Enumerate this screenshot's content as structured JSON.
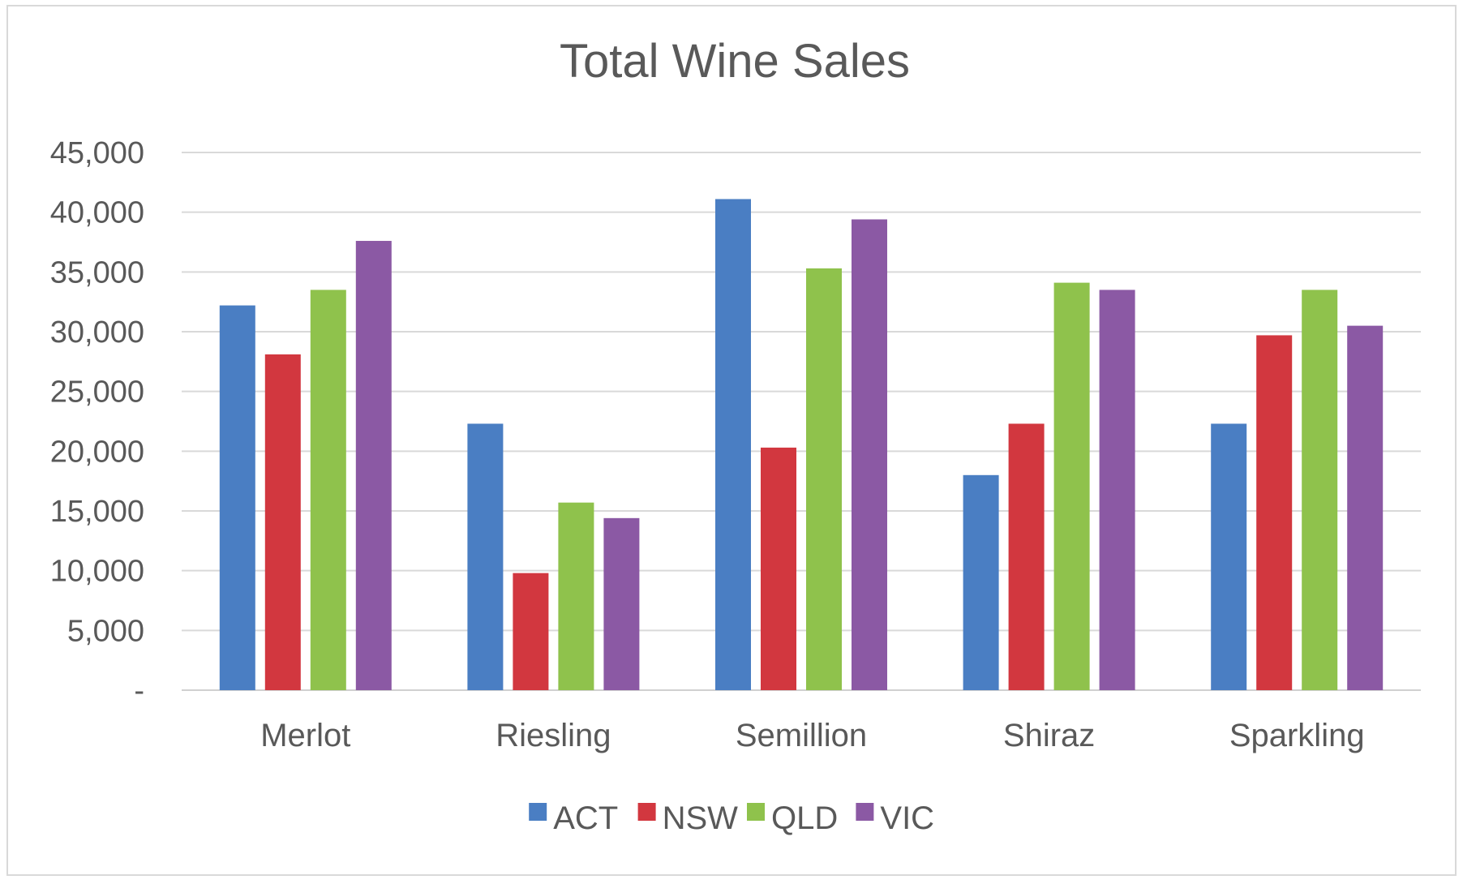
{
  "chart_data": {
    "type": "bar",
    "title": "Total Wine Sales",
    "xlabel": "",
    "ylabel": "",
    "categories": [
      "Merlot",
      "Riesling",
      "Semillion",
      "Shiraz",
      "Sparkling"
    ],
    "series": [
      {
        "name": "ACT",
        "color": "#4a7ec3",
        "values": [
          32200,
          22300,
          41100,
          18000,
          22300
        ]
      },
      {
        "name": "NSW",
        "color": "#d2373f",
        "values": [
          28100,
          9800,
          20300,
          22300,
          29700
        ]
      },
      {
        "name": "QLD",
        "color": "#8fc24c",
        "values": [
          33500,
          15700,
          35300,
          34100,
          33500
        ]
      },
      {
        "name": "VIC",
        "color": "#8b59a4",
        "values": [
          37600,
          14400,
          39400,
          33500,
          30500
        ]
      }
    ],
    "ylim": [
      0,
      45000
    ],
    "yticks": [
      0,
      5000,
      10000,
      15000,
      20000,
      25000,
      30000,
      35000,
      40000,
      45000
    ],
    "ytick_labels": [
      "-",
      "5,000",
      "10,000",
      "15,000",
      "20,000",
      "25,000",
      "30,000",
      "35,000",
      "40,000",
      "45,000"
    ],
    "grid": true,
    "legend_position": "bottom"
  }
}
